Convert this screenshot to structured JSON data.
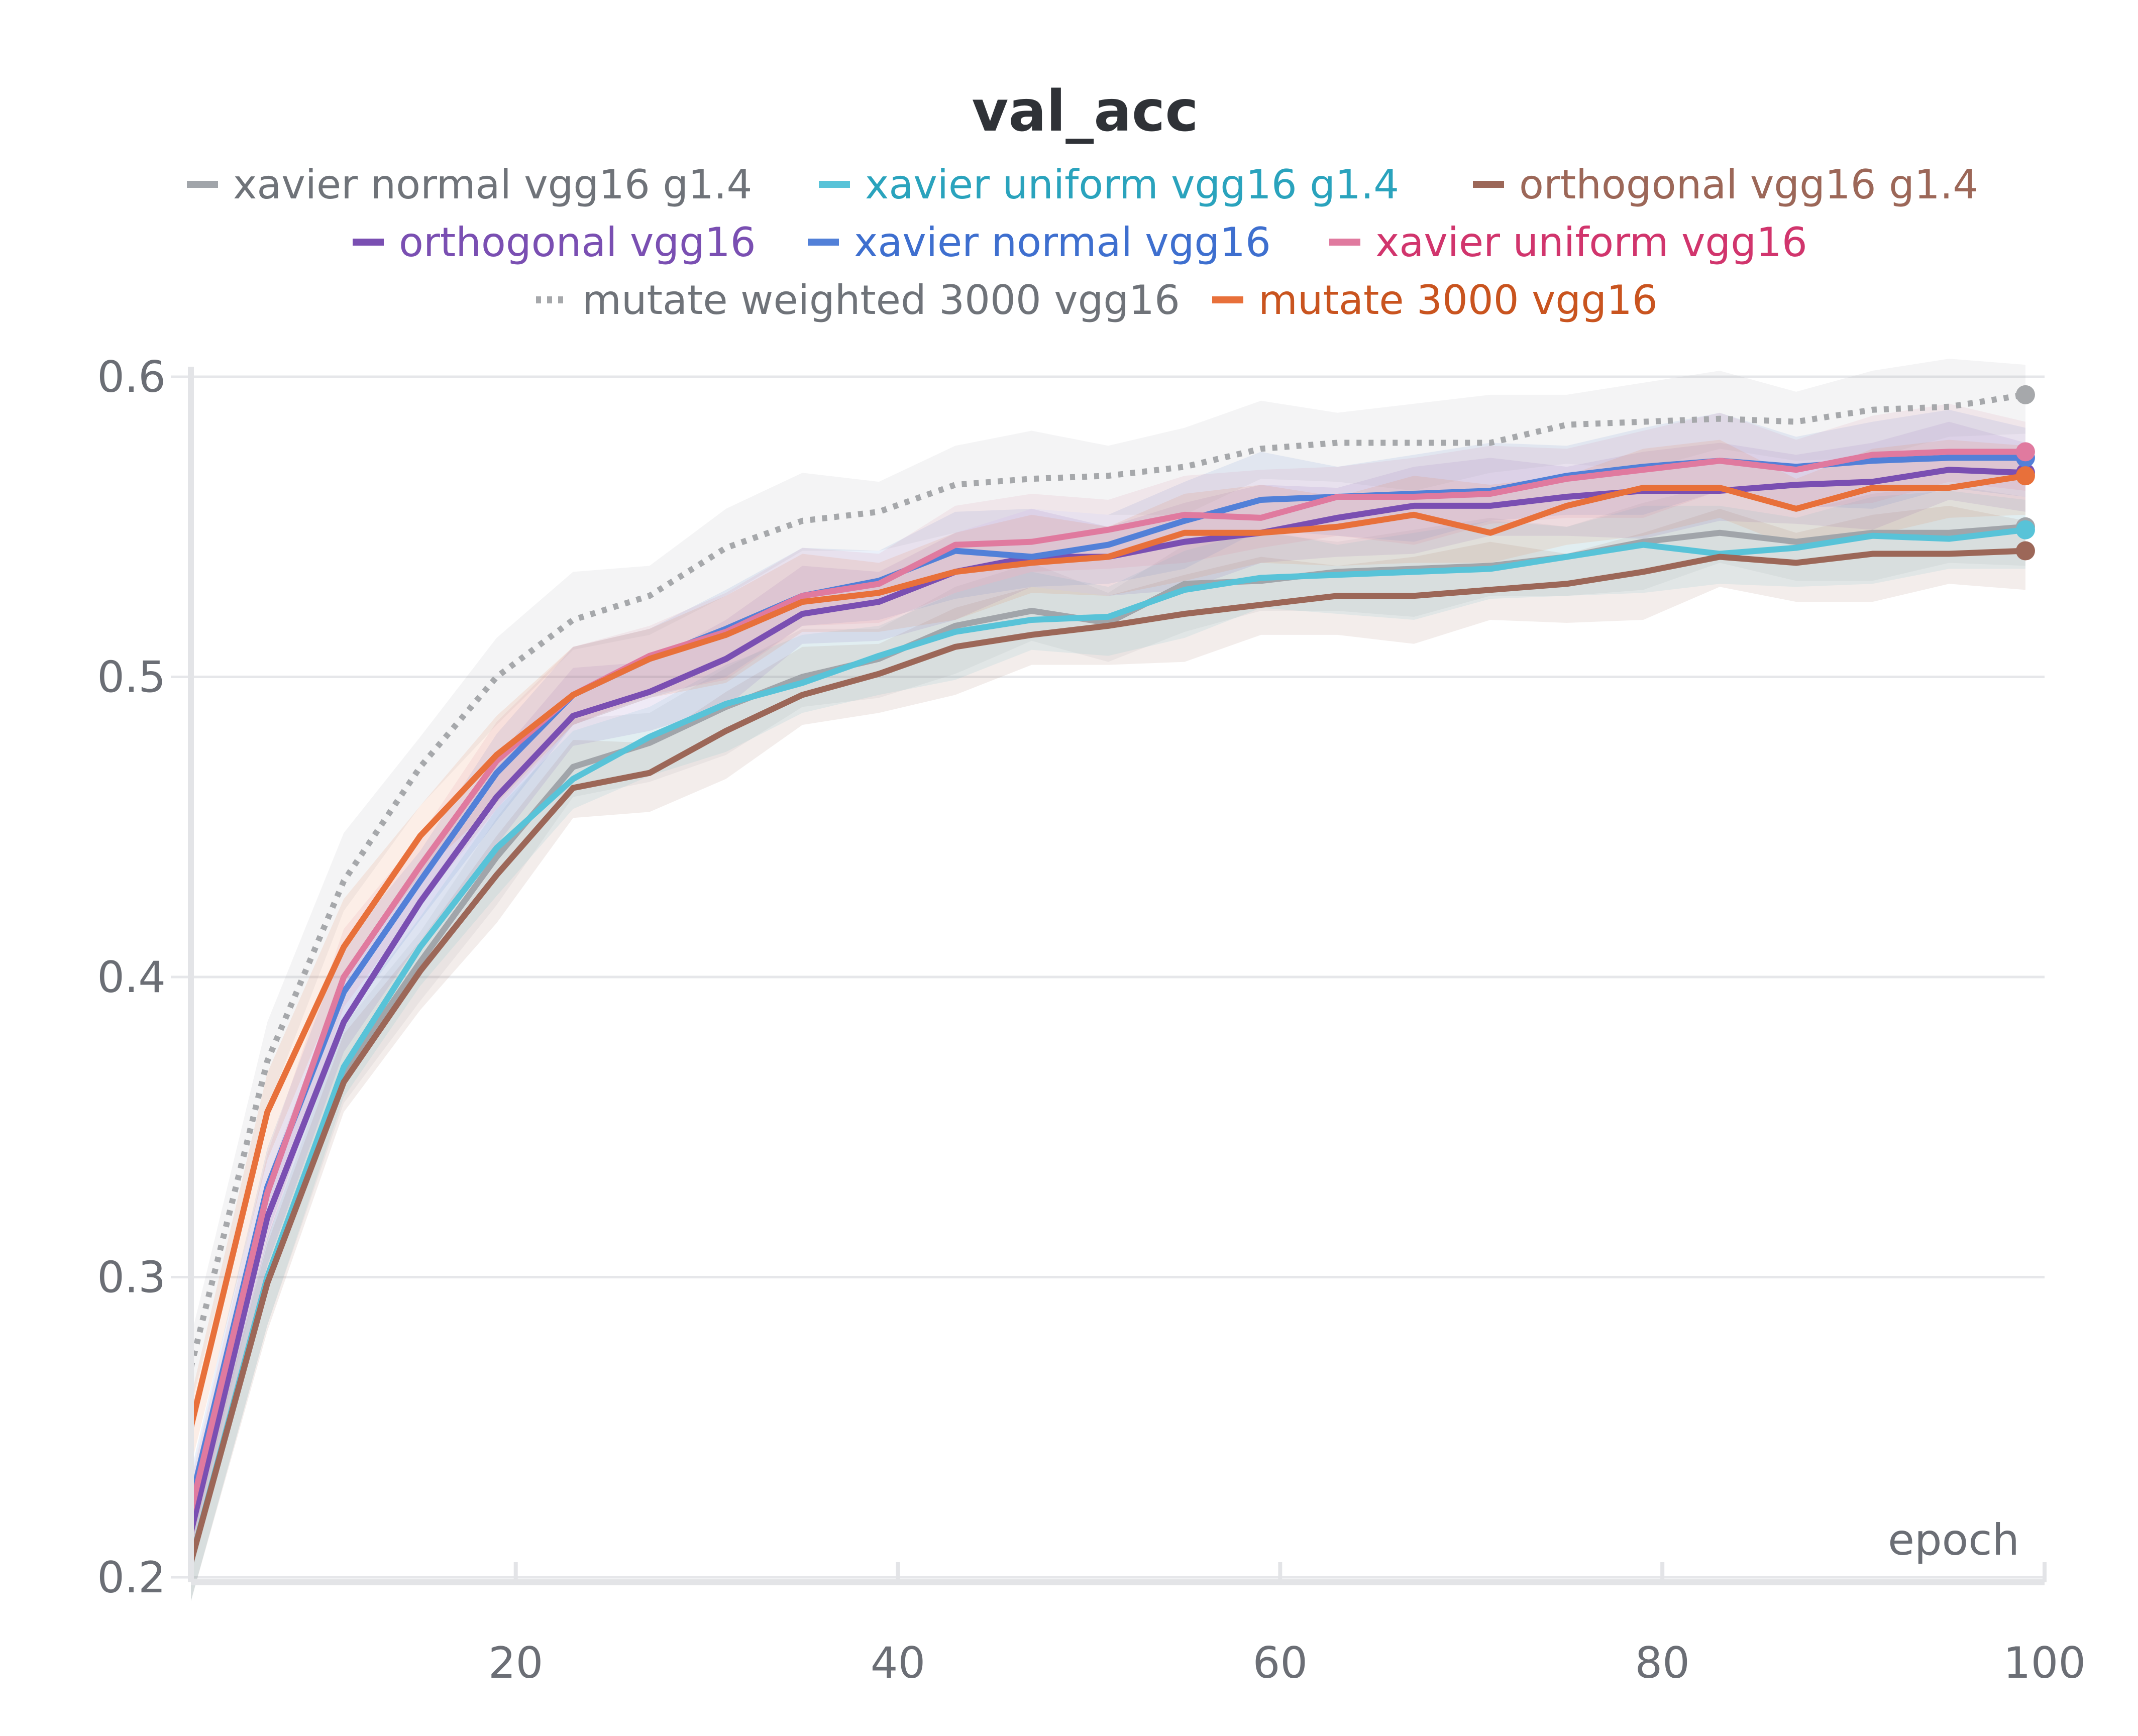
{
  "chart_data": {
    "type": "line",
    "title": "val_acc",
    "xlabel": "epoch",
    "ylabel": "",
    "xlim": [
      3,
      100
    ],
    "ylim": [
      0.2,
      0.6
    ],
    "x_ticks": [
      20,
      40,
      60,
      80,
      100
    ],
    "y_ticks": [
      0.2,
      0.3,
      0.4,
      0.5,
      0.6
    ],
    "x_tick_labels": [
      "20",
      "40",
      "60",
      "80",
      "100"
    ],
    "y_tick_labels": [
      "0.2",
      "0.3",
      "0.4",
      "0.5",
      "0.6"
    ],
    "grid": true,
    "legend_position": "top-center",
    "x": [
      3,
      7,
      11,
      15,
      19,
      23,
      27,
      31,
      35,
      39,
      43,
      47,
      51,
      55,
      59,
      63,
      67,
      71,
      75,
      79,
      83,
      87,
      91,
      95,
      99
    ],
    "series": [
      {
        "name": "xavier normal vgg16 g1.4",
        "color": "#a1a5aa",
        "text_color": "#6f7379",
        "dash": false,
        "values": [
          0.205,
          0.3,
          0.368,
          0.405,
          0.44,
          0.47,
          0.478,
          0.49,
          0.5,
          0.506,
          0.517,
          0.522,
          0.518,
          0.531,
          0.532,
          0.535,
          0.536,
          0.537,
          0.54,
          0.545,
          0.548,
          0.545,
          0.548,
          0.548,
          0.55
        ]
      },
      {
        "name": "xavier uniform vgg16 g1.4",
        "color": "#58c3d8",
        "text_color": "#2aa3bd",
        "dash": false,
        "values": [
          0.205,
          0.3,
          0.37,
          0.41,
          0.443,
          0.466,
          0.48,
          0.491,
          0.498,
          0.507,
          0.515,
          0.519,
          0.52,
          0.529,
          0.533,
          0.534,
          0.535,
          0.536,
          0.54,
          0.544,
          0.541,
          0.543,
          0.547,
          0.546,
          0.549
        ]
      },
      {
        "name": "orthogonal vgg16 g1.4",
        "color": "#9c6758",
        "text_color": "#9c6758",
        "dash": false,
        "values": [
          0.205,
          0.298,
          0.365,
          0.402,
          0.434,
          0.463,
          0.468,
          0.482,
          0.494,
          0.501,
          0.51,
          0.514,
          0.517,
          0.521,
          0.524,
          0.527,
          0.527,
          0.529,
          0.531,
          0.535,
          0.54,
          0.538,
          0.541,
          0.541,
          0.542
        ]
      },
      {
        "name": "orthogonal vgg16",
        "color": "#7a4fb2",
        "text_color": "#7a4fb2",
        "dash": false,
        "values": [
          0.215,
          0.32,
          0.385,
          0.425,
          0.46,
          0.487,
          0.495,
          0.506,
          0.521,
          0.525,
          0.535,
          0.54,
          0.54,
          0.545,
          0.548,
          0.553,
          0.557,
          0.557,
          0.56,
          0.562,
          0.562,
          0.564,
          0.565,
          0.569,
          0.568
        ]
      },
      {
        "name": "xavier normal vgg16",
        "color": "#5280d8",
        "text_color": "#3e6fcf",
        "dash": false,
        "values": [
          0.225,
          0.33,
          0.395,
          0.432,
          0.468,
          0.494,
          0.506,
          0.516,
          0.527,
          0.532,
          0.542,
          0.54,
          0.544,
          0.552,
          0.559,
          0.56,
          0.561,
          0.562,
          0.567,
          0.57,
          0.572,
          0.57,
          0.572,
          0.573,
          0.573
        ]
      },
      {
        "name": "xavier uniform vgg16",
        "color": "#e07a9f",
        "text_color": "#d1356d",
        "dash": false,
        "values": [
          0.222,
          0.328,
          0.4,
          0.437,
          0.472,
          0.494,
          0.507,
          0.515,
          0.527,
          0.531,
          0.544,
          0.545,
          0.549,
          0.554,
          0.553,
          0.56,
          0.56,
          0.561,
          0.566,
          0.569,
          0.572,
          0.569,
          0.574,
          0.575,
          0.575
        ]
      },
      {
        "name": "mutate weighted 3000 vgg16",
        "color": "#a6a8ab",
        "text_color": "#6f7379",
        "dash": true,
        "values": [
          0.27,
          0.372,
          0.432,
          0.47,
          0.5,
          0.519,
          0.527,
          0.543,
          0.552,
          0.555,
          0.564,
          0.566,
          0.567,
          0.57,
          0.576,
          0.578,
          0.578,
          0.578,
          0.584,
          0.585,
          0.586,
          0.585,
          0.589,
          0.59,
          0.594
        ]
      },
      {
        "name": "mutate 3000 vgg16",
        "color": "#e8703a",
        "text_color": "#c9541f",
        "dash": false,
        "values": [
          0.25,
          0.355,
          0.41,
          0.447,
          0.474,
          0.494,
          0.506,
          0.514,
          0.525,
          0.528,
          0.535,
          0.538,
          0.54,
          0.548,
          0.548,
          0.55,
          0.554,
          0.548,
          0.557,
          0.563,
          0.563,
          0.556,
          0.563,
          0.563,
          0.567
        ]
      }
    ]
  }
}
